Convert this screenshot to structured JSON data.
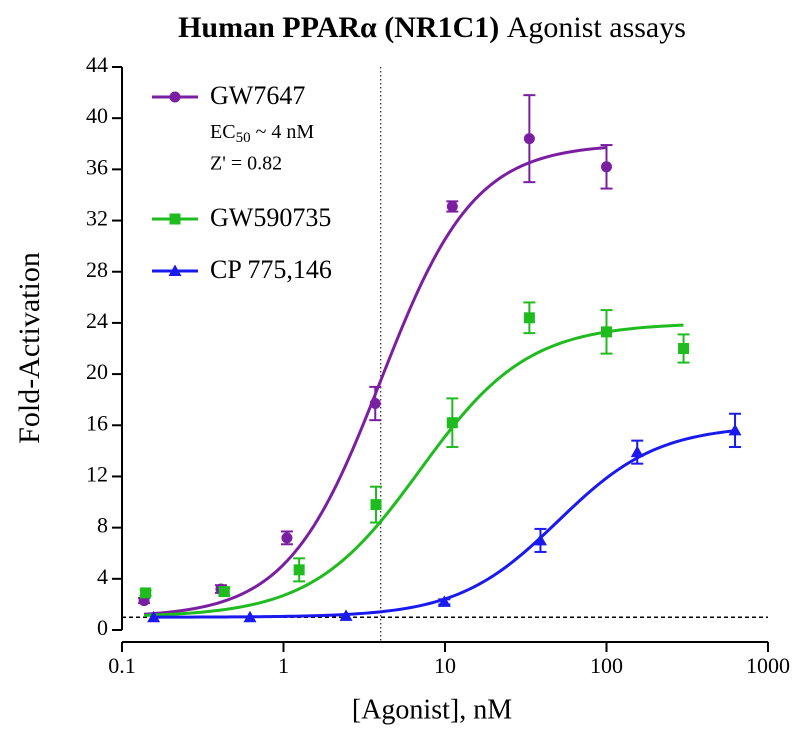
{
  "chart_data": {
    "type": "scatter",
    "title": [
      "Human PPARα (NR1C1)",
      "Agonist assays"
    ],
    "x_label": "[Agonist], nM",
    "y_label": "Fold-Activation",
    "x_scale": "log",
    "xlim": [
      0.1,
      1000
    ],
    "xticks": [
      0.1,
      1,
      10,
      100,
      1000
    ],
    "ylim": [
      0,
      44
    ],
    "yticks": [
      0,
      4,
      8,
      12,
      16,
      20,
      24,
      28,
      32,
      36,
      40,
      44
    ],
    "vlines": [
      4
    ],
    "hlines": [
      1
    ],
    "legend": "upper left",
    "annotations": [
      [
        "EC",
        "50",
        " ~ 4 nM"
      ],
      "Z' = 0.82"
    ],
    "series": [
      {
        "name": "GW7647",
        "color": "#7b1fa2",
        "marker": "circle",
        "x": [
          0.137,
          0.41,
          1.05,
          3.7,
          11.1,
          33.3,
          100
        ],
        "values": [
          2.3,
          3.2,
          7.2,
          17.7,
          33.1,
          38.4,
          36.2
        ],
        "errors": [
          0.2,
          0.3,
          0.5,
          1.3,
          0.4,
          3.4,
          1.7
        ],
        "fit": {
          "bottom": 1.0,
          "top": 38,
          "ec50": 4,
          "hill": 1.5,
          "xmin": 0.137,
          "xmax": 100
        }
      },
      {
        "name": "GW590735",
        "color": "#1fbb1f",
        "marker": "square",
        "x": [
          0.14,
          0.43,
          1.25,
          3.74,
          11.1,
          33.3,
          100,
          300
        ],
        "values": [
          2.9,
          3.0,
          4.7,
          9.8,
          16.2,
          24.4,
          23.3,
          22.0
        ],
        "errors": [
          0.2,
          0.3,
          0.9,
          1.4,
          1.9,
          1.2,
          1.7,
          1.1
        ],
        "fit": {
          "bottom": 1.0,
          "top": 24,
          "ec50": 7,
          "hill": 1.3,
          "xmin": 0.137,
          "xmax": 300
        }
      },
      {
        "name": "CP 775,146",
        "color": "#1a1aee",
        "marker": "triangle",
        "x": [
          0.157,
          0.62,
          2.44,
          9.9,
          39,
          155,
          625
        ],
        "values": [
          1.0,
          1.0,
          1.1,
          2.2,
          7.0,
          13.9,
          15.6
        ],
        "errors": [
          0,
          0,
          0,
          0.2,
          0.9,
          0.9,
          1.3
        ],
        "fit": {
          "bottom": 1.0,
          "top": 16,
          "ec50": 50,
          "hill": 1.4,
          "xmin": 0.157,
          "xmax": 625
        }
      }
    ]
  }
}
